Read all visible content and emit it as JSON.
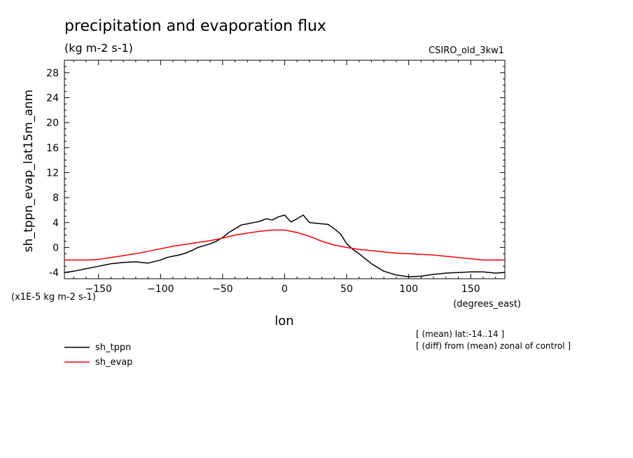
{
  "chart_data": {
    "type": "line",
    "title": "precipitation and evaporation flux",
    "units_label": "(kg m-2 s-1)",
    "model_label": "CSIRO_old_3kw1",
    "ylabel": "sh_tppn_evap_lat15m_anm",
    "xlabel": "lon",
    "x_units_label": "(degrees_east)",
    "y_scale_label": "(x1E-5 kg m-2 s-1)",
    "notes": [
      "[ (mean) lat:-14..14 ]",
      "[ (diff) from (mean) zonal of control ]"
    ],
    "xlim": [
      -177.5,
      177.5
    ],
    "ylim": [
      -5,
      30
    ],
    "xticks": [
      -150,
      -100,
      -50,
      0,
      50,
      100,
      150
    ],
    "yticks": [
      -4,
      0,
      4,
      8,
      12,
      16,
      20,
      24,
      28
    ],
    "series": [
      {
        "name": "sh_tppn",
        "color": "#000000",
        "x": [
          -177.5,
          -170,
          -160,
          -150,
          -140,
          -130,
          -120,
          -110,
          -100,
          -95,
          -90,
          -85,
          -80,
          -75,
          -70,
          -65,
          -60,
          -55,
          -50,
          -45,
          -40,
          -35,
          -30,
          -25,
          -20,
          -15,
          -10,
          -5,
          0,
          5,
          10,
          15,
          20,
          25,
          30,
          35,
          40,
          45,
          50,
          55,
          60,
          65,
          70,
          75,
          80,
          90,
          100,
          110,
          120,
          130,
          140,
          150,
          160,
          170,
          177.5
        ],
        "y": [
          -4.0,
          -3.8,
          -3.4,
          -3.0,
          -2.6,
          -2.4,
          -2.3,
          -2.5,
          -2.0,
          -1.6,
          -1.4,
          -1.2,
          -0.9,
          -0.5,
          0.0,
          0.3,
          0.6,
          1.0,
          1.6,
          2.4,
          3.0,
          3.6,
          3.8,
          4.0,
          4.2,
          4.6,
          4.4,
          4.9,
          5.2,
          4.1,
          4.6,
          5.2,
          4.0,
          3.9,
          3.8,
          3.7,
          3.0,
          2.2,
          0.6,
          -0.3,
          -1.0,
          -1.8,
          -2.6,
          -3.2,
          -3.8,
          -4.4,
          -4.7,
          -4.6,
          -4.3,
          -4.1,
          -4.0,
          -3.9,
          -3.9,
          -4.1,
          -4.0
        ]
      },
      {
        "name": "sh_evap",
        "color": "#ff0000",
        "x": [
          -177.5,
          -160,
          -150,
          -140,
          -130,
          -120,
          -110,
          -100,
          -90,
          -80,
          -70,
          -60,
          -50,
          -40,
          -30,
          -20,
          -10,
          0,
          10,
          20,
          30,
          40,
          50,
          60,
          70,
          80,
          90,
          100,
          110,
          120,
          130,
          140,
          150,
          160,
          170,
          177.5
        ],
        "y": [
          -2.0,
          -2.0,
          -1.9,
          -1.6,
          -1.3,
          -1.0,
          -0.6,
          -0.2,
          0.2,
          0.5,
          0.8,
          1.1,
          1.5,
          2.0,
          2.3,
          2.6,
          2.8,
          2.8,
          2.4,
          1.8,
          1.0,
          0.4,
          0.0,
          -0.3,
          -0.5,
          -0.7,
          -0.9,
          -1.0,
          -1.1,
          -1.2,
          -1.4,
          -1.6,
          -1.8,
          -2.0,
          -2.0,
          -2.0
        ]
      }
    ],
    "legend_placement": "bottom-left",
    "grid": false
  }
}
